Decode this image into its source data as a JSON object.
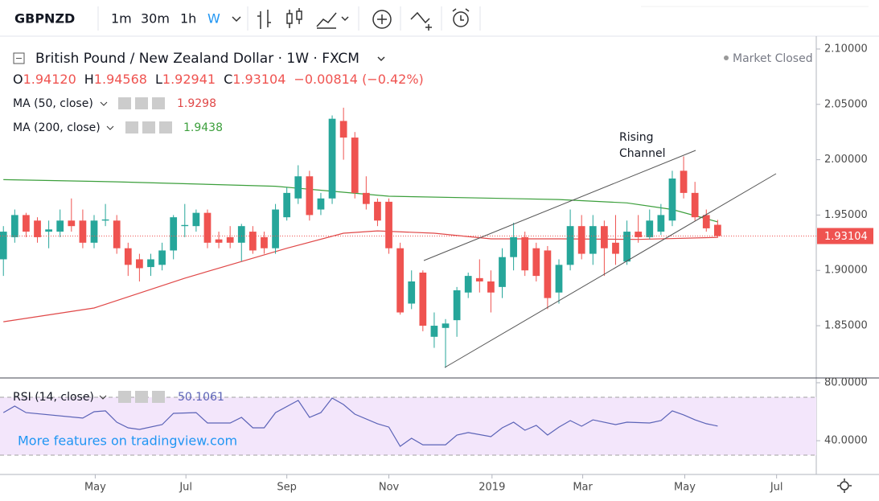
{
  "toolbar": {
    "symbol": "GBPNZD",
    "intervals": [
      "1m",
      "30m",
      "1h",
      "W"
    ]
  },
  "chart_data": {
    "type": "candlestick",
    "title": "British Pound / New Zealand Dollar · 1W · FXCM",
    "status": "Market Closed",
    "legend": {
      "ohlc": [
        {
          "label": "O",
          "value": "1.94120"
        },
        {
          "label": "H",
          "value": "1.94568"
        },
        {
          "label": "L",
          "value": "1.92941"
        },
        {
          "label": "C",
          "value": "1.93104"
        }
      ],
      "change": "−0.00814 (−0.42%)"
    },
    "annotation": [
      "Rising",
      "Channel"
    ],
    "promo": "More features on tradingview.com",
    "up_color": "#26a69a",
    "down_color": "#ef5350",
    "xlim": [
      -0.3,
      71.7
    ],
    "xticks": [
      {
        "value": 8.1,
        "label": "May"
      },
      {
        "value": 16.1,
        "label": "Jul"
      },
      {
        "value": 25.0,
        "label": "Sep"
      },
      {
        "value": 34.0,
        "label": "Nov"
      },
      {
        "value": 43.1,
        "label": "2019"
      },
      {
        "value": 51.1,
        "label": "Mar"
      },
      {
        "value": 60.1,
        "label": "May"
      },
      {
        "value": 68.2,
        "label": "Jul"
      }
    ],
    "ylim": [
      1.8028,
      2.1116
    ],
    "yticks": [
      {
        "value": 2.1,
        "label": "2.10000"
      },
      {
        "value": 2.05,
        "label": "2.05000"
      },
      {
        "value": 2.0,
        "label": "2.00000"
      },
      {
        "value": 1.95,
        "label": "1.95000"
      },
      {
        "value": 1.9,
        "label": "1.90000"
      },
      {
        "value": 1.85,
        "label": "1.85000"
      }
    ],
    "open": [
      1.91,
      1.93,
      1.95,
      1.945,
      1.935,
      1.935,
      1.945,
      1.945,
      1.925,
      1.945,
      1.945,
      1.92,
      1.91,
      1.903,
      1.905,
      1.918,
      1.94,
      1.94,
      1.952,
      1.928,
      1.93,
      1.925,
      1.935,
      1.93,
      1.92,
      1.948,
      1.965,
      1.985,
      1.955,
      1.965,
      2.035,
      2.02,
      1.97,
      1.962,
      1.962,
      1.92,
      1.87,
      1.898,
      1.84,
      1.848,
      1.855,
      1.88,
      1.893,
      1.89,
      1.885,
      1.912,
      1.93,
      1.92,
      1.918,
      1.88,
      1.905,
      1.94,
      1.915,
      1.94,
      1.925,
      1.908,
      1.935,
      1.93,
      1.935,
      1.945,
      1.99,
      1.97,
      1.95,
      1.9412
    ],
    "high": [
      1.94,
      1.955,
      1.952,
      1.948,
      1.945,
      1.955,
      1.965,
      1.955,
      1.95,
      1.96,
      1.95,
      1.925,
      1.915,
      1.915,
      1.925,
      1.95,
      1.96,
      1.955,
      1.955,
      1.935,
      1.94,
      1.942,
      1.94,
      1.935,
      1.96,
      1.975,
      1.995,
      1.99,
      1.97,
      2.04,
      2.047,
      2.025,
      1.985,
      1.965,
      1.965,
      1.925,
      1.9,
      1.9,
      1.862,
      1.856,
      1.885,
      1.898,
      1.91,
      1.9,
      1.92,
      1.943,
      1.935,
      1.925,
      1.922,
      1.91,
      1.955,
      1.95,
      1.95,
      1.945,
      1.95,
      1.945,
      1.95,
      1.955,
      1.96,
      1.99,
      2.003,
      1.98,
      1.955,
      1.94568
    ],
    "low": [
      1.895,
      1.925,
      1.93,
      1.925,
      1.92,
      1.93,
      1.935,
      1.92,
      1.92,
      1.94,
      1.915,
      1.895,
      1.89,
      1.895,
      1.9,
      1.91,
      1.93,
      1.935,
      1.92,
      1.92,
      1.92,
      1.908,
      1.915,
      1.915,
      1.915,
      1.945,
      1.96,
      1.945,
      1.95,
      1.96,
      2.0,
      1.965,
      1.955,
      1.94,
      1.915,
      1.86,
      1.865,
      1.845,
      1.83,
      1.812,
      1.84,
      1.875,
      1.88,
      1.862,
      1.875,
      1.9,
      1.895,
      1.89,
      1.865,
      1.87,
      1.9,
      1.91,
      1.905,
      1.895,
      1.905,
      1.905,
      1.925,
      1.928,
      1.932,
      1.94,
      1.965,
      1.945,
      1.935,
      1.92941
    ],
    "close": [
      1.935,
      1.95,
      1.935,
      1.93,
      1.937,
      1.945,
      1.94,
      1.925,
      1.945,
      1.946,
      1.92,
      1.905,
      1.902,
      1.91,
      1.918,
      1.948,
      1.941,
      1.952,
      1.925,
      1.925,
      1.925,
      1.94,
      1.918,
      1.92,
      1.955,
      1.97,
      1.985,
      1.95,
      1.965,
      2.037,
      2.02,
      1.97,
      1.96,
      1.945,
      1.92,
      1.862,
      1.89,
      1.85,
      1.85,
      1.852,
      1.882,
      1.895,
      1.89,
      1.88,
      1.912,
      1.93,
      1.9,
      1.895,
      1.875,
      1.905,
      1.94,
      1.915,
      1.94,
      1.92,
      1.915,
      1.935,
      1.93,
      1.945,
      1.95,
      1.983,
      1.97,
      1.948,
      1.938,
      1.93104
    ],
    "ma": [
      {
        "name": "MA (50, close)",
        "color": "#e04848",
        "x": [
          0,
          8,
          16,
          25,
          30,
          33,
          38,
          43,
          49,
          56,
          63
        ],
        "values": [
          1.8536,
          1.866,
          1.893,
          1.92,
          1.9336,
          1.9357,
          1.9336,
          1.9285,
          1.9285,
          1.928,
          1.9298
        ]
      },
      {
        "name": "MA (200, close)",
        "color": "#3c9f3c",
        "x": [
          0,
          10,
          24,
          34,
          49,
          55,
          59,
          63
        ],
        "values": [
          1.982,
          1.98,
          1.976,
          1.967,
          1.964,
          1.961,
          1.955,
          1.9438
        ]
      }
    ],
    "rsi": {
      "name": "RSI (14, close)",
      "color": "#5b63b7",
      "band_color": "#f3e6fb",
      "bands": [
        70,
        30
      ],
      "ylim": [
        16.7,
        83.3
      ],
      "yticks": [
        {
          "value": 80,
          "label": "80.0000"
        },
        {
          "value": 40,
          "label": "40.0000"
        }
      ],
      "x": [
        0,
        1,
        2,
        7,
        8,
        9,
        10,
        11,
        12,
        14,
        15,
        17,
        18,
        20,
        21,
        22,
        23,
        24,
        26,
        27,
        28,
        29,
        30,
        31,
        33,
        34,
        35,
        36,
        37,
        38,
        39,
        40,
        41,
        43,
        44,
        45,
        46,
        47,
        48,
        49,
        50,
        51,
        52,
        54,
        55,
        57,
        58,
        59,
        60,
        61,
        62,
        63
      ],
      "values": [
        59.4,
        63.9,
        59.4,
        55.6,
        60,
        60.6,
        52.8,
        48.9,
        47.8,
        51.1,
        58.9,
        59.4,
        52.2,
        52.2,
        56.1,
        48.9,
        48.9,
        59.4,
        67.8,
        56.1,
        59.4,
        69.4,
        65,
        58.3,
        51.7,
        49.4,
        36.1,
        41.7,
        37.2,
        37.2,
        37.2,
        43.9,
        45.6,
        42.8,
        48.9,
        52.8,
        47.2,
        50.6,
        43.9,
        49.4,
        53.9,
        50,
        54.4,
        51.1,
        52.8,
        52.2,
        53.9,
        60.6,
        57.8,
        54.4,
        51.7,
        50.1061
      ]
    }
  }
}
